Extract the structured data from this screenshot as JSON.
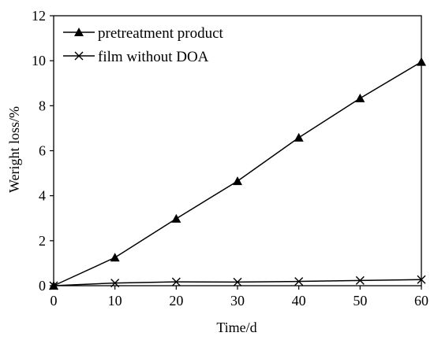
{
  "chart_data": {
    "type": "line",
    "title": "",
    "xlabel": "Time/d",
    "ylabel": "Weright loss/%",
    "xlim": [
      0,
      60
    ],
    "ylim": [
      0,
      12
    ],
    "x_ticks": [
      "0",
      "10",
      "20",
      "30",
      "40",
      "50",
      "60"
    ],
    "y_ticks": [
      "0",
      "2",
      "4",
      "6",
      "8",
      "10",
      "12"
    ],
    "grid": false,
    "legend_position": "top-left",
    "series": [
      {
        "name": "pretreatment product",
        "marker": "triangle",
        "color": "#000000",
        "x": [
          0,
          10,
          20,
          30,
          40,
          50,
          60
        ],
        "y": [
          0,
          1.25,
          2.98,
          4.65,
          6.58,
          8.33,
          9.95
        ]
      },
      {
        "name": "film without DOA",
        "marker": "x",
        "color": "#000000",
        "x": [
          0,
          10,
          20,
          30,
          40,
          50,
          60
        ],
        "y": [
          0,
          0.12,
          0.17,
          0.16,
          0.19,
          0.23,
          0.27
        ]
      }
    ]
  }
}
